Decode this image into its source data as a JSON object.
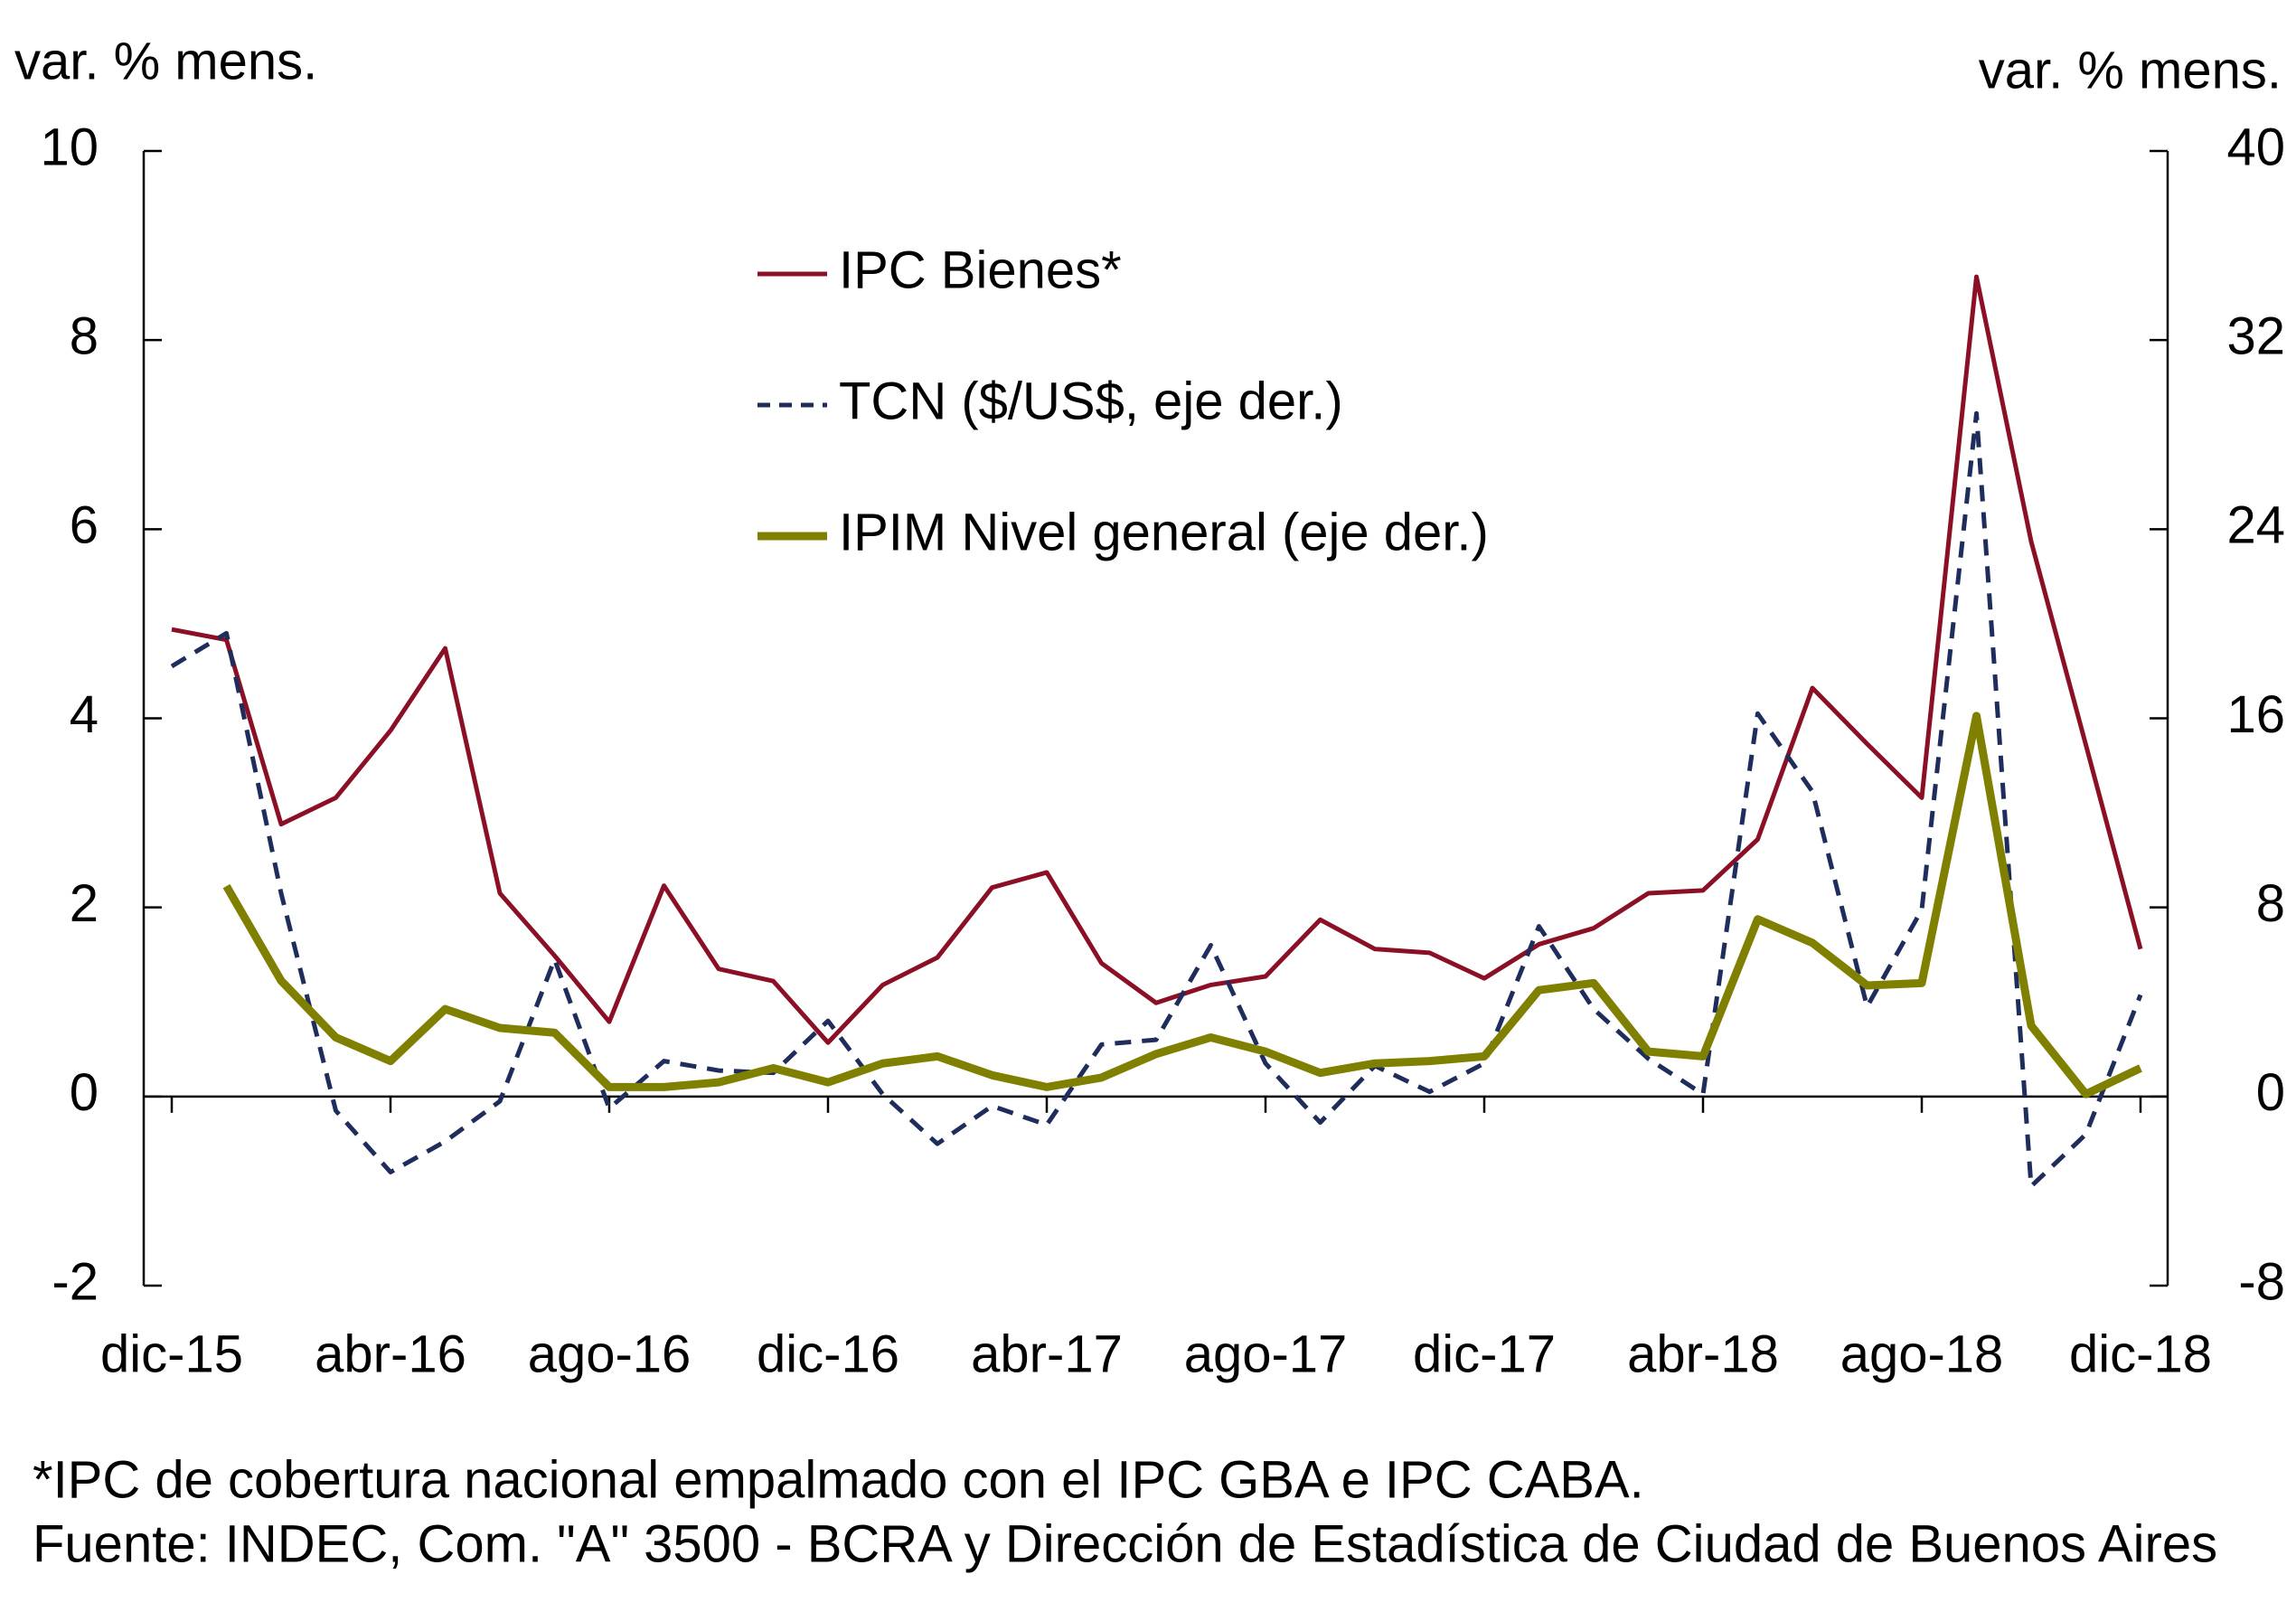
{
  "chart_data": {
    "type": "line",
    "ylabel": "var. % mens.",
    "y2label": "var. % mens.",
    "categories": [
      "dic-15",
      null,
      null,
      null,
      "abr-16",
      null,
      null,
      null,
      "ago-16",
      null,
      null,
      null,
      "dic-16",
      null,
      null,
      null,
      "abr-17",
      null,
      null,
      null,
      "ago-17",
      null,
      null,
      null,
      "dic-17",
      null,
      null,
      null,
      "abr-18",
      null,
      null,
      null,
      "ago-18",
      null,
      null,
      null,
      "dic-18"
    ],
    "ylim": [
      -2,
      10
    ],
    "yticks": [
      -2,
      0,
      2,
      4,
      6,
      8,
      10
    ],
    "y2lim": [
      -8,
      40
    ],
    "y2ticks": [
      -8,
      0,
      8,
      16,
      24,
      32,
      40
    ],
    "grid": false,
    "legend": "top",
    "series": [
      {
        "name": "IPC Bienes*",
        "color": "#8b1026",
        "dash": "solid",
        "values": [
          4.94,
          4.83,
          2.88,
          3.16,
          3.87,
          4.74,
          2.15,
          1.49,
          0.79,
          2.23,
          1.35,
          1.22,
          0.57,
          1.18,
          1.47,
          2.21,
          2.37,
          1.41,
          0.99,
          1.18,
          1.27,
          1.87,
          1.56,
          1.52,
          1.25,
          1.61,
          1.78,
          2.15,
          2.18,
          2.72,
          4.32,
          3.73,
          3.16,
          8.67,
          5.87,
          3.72,
          1.56
        ]
      },
      {
        "name": "TCN ($/US$, eje der.)",
        "color": "#1f2d5c",
        "dash": "dashed",
        "axis": "y2",
        "values": [
          18.2,
          19.6,
          8.6,
          -0.6,
          -3.2,
          -1.9,
          -0.2,
          5.8,
          -0.5,
          1.5,
          1.1,
          1.0,
          3.2,
          0.1,
          -2.0,
          -0.4,
          -1.2,
          2.2,
          2.4,
          6.4,
          1.4,
          -1.1,
          1.3,
          0.2,
          1.4,
          7.2,
          3.7,
          1.6,
          0.1,
          16.2,
          12.9,
          3.8,
          7.9,
          28.9,
          -3.8,
          -1.6,
          4.3
        ]
      },
      {
        "name": "IPIM Nivel general (eje der.)",
        "color": "#808000",
        "dash": "thick",
        "axis": "y2",
        "values": [
          null,
          8.9,
          4.9,
          2.5,
          1.5,
          3.7,
          2.9,
          2.7,
          0.4,
          0.4,
          0.6,
          1.2,
          0.6,
          1.4,
          1.7,
          0.9,
          0.4,
          0.8,
          1.8,
          2.5,
          1.9,
          1.0,
          1.4,
          1.5,
          1.7,
          4.5,
          4.8,
          1.9,
          1.7,
          7.5,
          6.5,
          4.7,
          4.8,
          16.1,
          3.0,
          0.1,
          1.2
        ]
      }
    ],
    "footnotes": [
      "*IPC de cobertura nacional empalmado con el IPC GBA e IPC CABA.",
      "Fuente: INDEC, Com. \"A\" 3500 - BCRA y Dirección de Estadística de Ciudad de Buenos Aires"
    ]
  }
}
